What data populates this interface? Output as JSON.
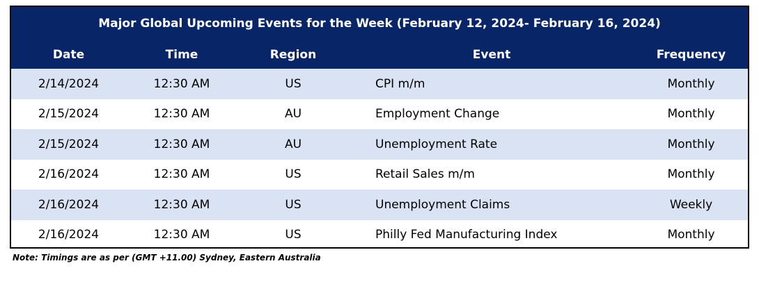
{
  "table": {
    "title": "Major Global Upcoming Events for the Week (February 12, 2024- February 16, 2024)",
    "headers": [
      "Date",
      "Time",
      "Region",
      "Event",
      "Frequency"
    ],
    "rows": [
      [
        "2/14/2024",
        "12:30 AM",
        "US",
        "CPI m/m",
        "Monthly"
      ],
      [
        "2/15/2024",
        "12:30 AM",
        "AU",
        "Employment Change",
        "Monthly"
      ],
      [
        "2/15/2024",
        "12:30 AM",
        "AU",
        "Unemployment Rate",
        "Monthly"
      ],
      [
        "2/16/2024",
        "12:30 AM",
        "US",
        "Retail Sales m/m",
        "Monthly"
      ],
      [
        "2/16/2024",
        "12:30 AM",
        "US",
        "Unemployment Claims",
        "Weekly"
      ],
      [
        "2/16/2024",
        "12:30 AM",
        "US",
        "Philly Fed Manufacturing Index",
        "Monthly"
      ]
    ],
    "note": "Note: Timings are as per (GMT +11.00) Sydney, Eastern Australia"
  }
}
